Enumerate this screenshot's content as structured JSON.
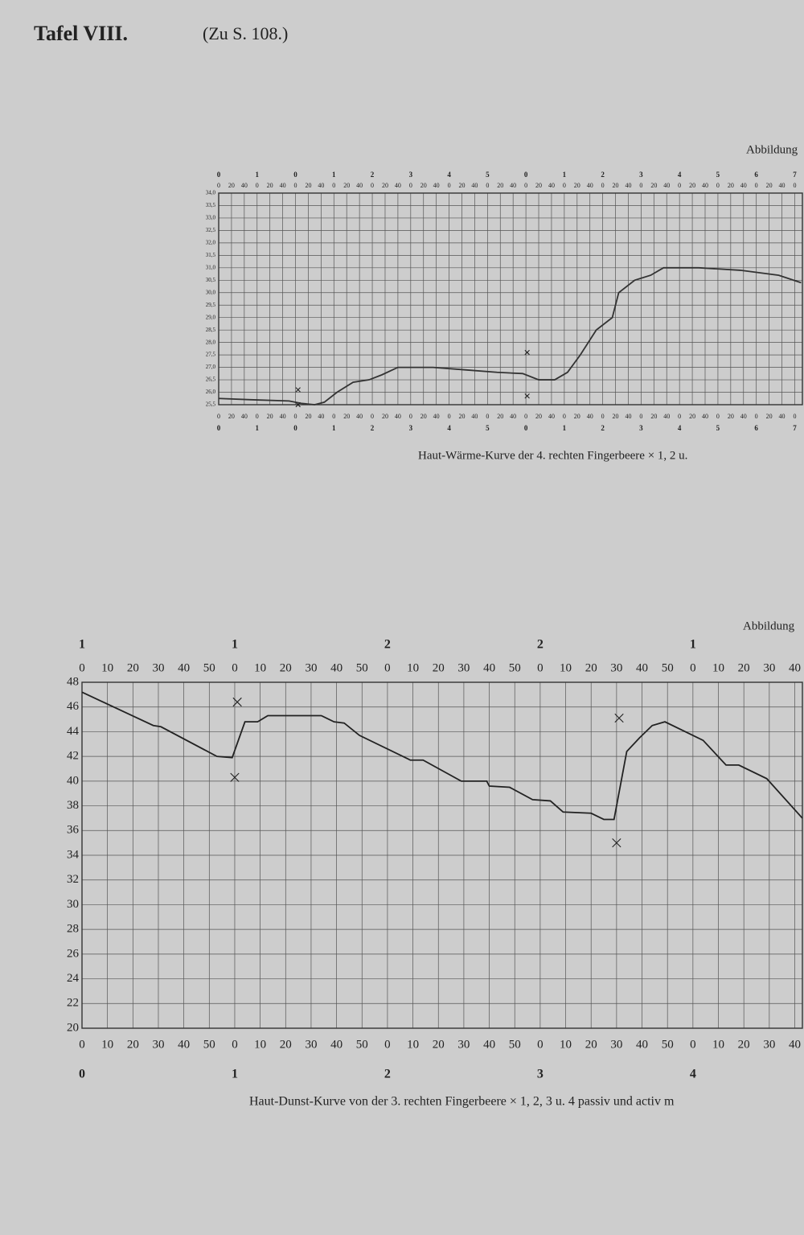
{
  "header": {
    "title": "Tafel VIII.",
    "ref": "(Zu S. 108.)"
  },
  "chart_data": [
    {
      "type": "line",
      "title": "Abbildung",
      "caption": "Haut-Wärme-Kurve der 4. rechten Fingerbeere × 1, 2 u.",
      "color": "#333333",
      "grid": true,
      "x": [
        0,
        50,
        110,
        130,
        150,
        165,
        185,
        210,
        235,
        255,
        280,
        335,
        385,
        435,
        475,
        500,
        525,
        545,
        565,
        590,
        615,
        625,
        650,
        675,
        695,
        750,
        815,
        875,
        910
      ],
      "values": [
        25.75,
        25.7,
        25.65,
        25.55,
        25.5,
        25.6,
        26.0,
        26.4,
        26.5,
        26.7,
        27.0,
        27.0,
        26.9,
        26.8,
        26.75,
        26.5,
        26.5,
        26.8,
        27.5,
        28.5,
        29.0,
        30.0,
        30.5,
        30.7,
        31.0,
        31.0,
        30.9,
        30.7,
        30.4
      ],
      "markers": {
        "x": [
          124,
          124,
          482,
          482
        ],
        "values": [
          26.1,
          25.5,
          27.6,
          25.85
        ]
      },
      "xlim": [
        0,
        912
      ],
      "ylim": [
        25.5,
        34
      ],
      "yticks": [
        {
          "value": 34,
          "label": "34,0"
        },
        {
          "value": 33.5,
          "label": "33,5"
        },
        {
          "value": 33,
          "label": "33,0"
        },
        {
          "value": 32.5,
          "label": "32,5"
        },
        {
          "value": 32,
          "label": "32,0"
        },
        {
          "value": 31.5,
          "label": "31,5"
        },
        {
          "value": 31,
          "label": "31,0"
        },
        {
          "value": 30.5,
          "label": "30,5"
        },
        {
          "value": 30,
          "label": "30,0"
        },
        {
          "value": 29.5,
          "label": "29,5"
        },
        {
          "value": 29,
          "label": "29,0"
        },
        {
          "value": 28.5,
          "label": "28,5"
        },
        {
          "value": 28,
          "label": "28,0"
        },
        {
          "value": 27.5,
          "label": "27,5"
        },
        {
          "value": 27,
          "label": "27,0"
        },
        {
          "value": 26.5,
          "label": "26,5"
        },
        {
          "value": 26,
          "label": "26,0"
        },
        {
          "value": 25.5,
          "label": "25,5"
        }
      ],
      "xticks": [
        0,
        20,
        40,
        {
          "value": 60,
          "label": "0"
        },
        {
          "value": 80,
          "label": "20"
        },
        {
          "value": 100,
          "label": "40"
        },
        {
          "value": 120,
          "label": "0"
        },
        {
          "value": 140,
          "label": "20"
        },
        {
          "value": 160,
          "label": "40"
        },
        {
          "value": 180,
          "label": "0"
        },
        {
          "value": 200,
          "label": "20"
        },
        {
          "value": 220,
          "label": "40"
        },
        {
          "value": 240,
          "label": "0"
        },
        {
          "value": 260,
          "label": "20"
        },
        {
          "value": 280,
          "label": "40"
        },
        {
          "value": 300,
          "label": "0"
        },
        {
          "value": 320,
          "label": "20"
        },
        {
          "value": 340,
          "label": "40"
        },
        {
          "value": 360,
          "label": "0"
        },
        {
          "value": 380,
          "label": "20"
        },
        {
          "value": 400,
          "label": "40"
        },
        {
          "value": 420,
          "label": "0"
        },
        {
          "value": 440,
          "label": "20"
        },
        {
          "value": 460,
          "label": "40"
        },
        {
          "value": 480,
          "label": "0"
        },
        {
          "value": 500,
          "label": "20"
        },
        {
          "value": 520,
          "label": "40"
        },
        {
          "value": 540,
          "label": "0"
        },
        {
          "value": 560,
          "label": "20"
        },
        {
          "value": 580,
          "label": "40"
        },
        {
          "value": 600,
          "label": "0"
        },
        {
          "value": 620,
          "label": "20"
        },
        {
          "value": 640,
          "label": "40"
        },
        {
          "value": 660,
          "label": "0"
        },
        {
          "value": 680,
          "label": "20"
        },
        {
          "value": 700,
          "label": "40"
        },
        {
          "value": 720,
          "label": "0"
        },
        {
          "value": 740,
          "label": "20"
        },
        {
          "value": 760,
          "label": "40"
        },
        {
          "value": 780,
          "label": "0"
        },
        {
          "value": 800,
          "label": "20"
        },
        {
          "value": 820,
          "label": "40"
        },
        {
          "value": 840,
          "label": "0"
        },
        {
          "value": 860,
          "label": "20"
        },
        {
          "value": 880,
          "label": "40"
        },
        {
          "value": 900,
          "label": "0"
        }
      ],
      "group_ticks_top": [
        0,
        {
          "value": 60,
          "label": "1"
        },
        {
          "value": 120,
          "label": "0"
        },
        {
          "value": 180,
          "label": "1"
        },
        {
          "value": 240,
          "label": "2"
        },
        {
          "value": 300,
          "label": "3"
        },
        {
          "value": 360,
          "label": "4"
        },
        {
          "value": 420,
          "label": "5"
        },
        {
          "value": 480,
          "label": "0"
        },
        {
          "value": 540,
          "label": "1"
        },
        {
          "value": 600,
          "label": "2"
        },
        {
          "value": 660,
          "label": "3"
        },
        {
          "value": 720,
          "label": "4"
        },
        {
          "value": 780,
          "label": "5"
        },
        {
          "value": 840,
          "label": "6"
        },
        {
          "value": 900,
          "label": "7"
        }
      ],
      "group_ticks_bottom": [
        0,
        {
          "value": 60,
          "label": "1"
        },
        {
          "value": 120,
          "label": "0"
        },
        {
          "value": 180,
          "label": "1"
        },
        {
          "value": 240,
          "label": "2"
        },
        {
          "value": 300,
          "label": "3"
        },
        {
          "value": 360,
          "label": "4"
        },
        {
          "value": 420,
          "label": "5"
        },
        {
          "value": 480,
          "label": "0"
        },
        {
          "value": 540,
          "label": "1"
        },
        {
          "value": 600,
          "label": "2"
        },
        {
          "value": 660,
          "label": "3"
        },
        {
          "value": 720,
          "label": "4"
        },
        {
          "value": 780,
          "label": "5"
        },
        {
          "value": 840,
          "label": "6"
        },
        {
          "value": 900,
          "label": "7"
        }
      ]
    },
    {
      "type": "line",
      "title": "Abbildung",
      "caption": "Haut-Dunst-Kurve von der 3. rechten Fingerbeere × 1, 2, 3 u. 4 passiv und activ m",
      "color": "#222222",
      "grid": true,
      "x": [
        0,
        28,
        31,
        53,
        59,
        64,
        69,
        73,
        94,
        99,
        103,
        109,
        129,
        134,
        149,
        159,
        160,
        168,
        177,
        184,
        189,
        200,
        205,
        209,
        214,
        219,
        224,
        229,
        244,
        253,
        258,
        269,
        283
      ],
      "values": [
        47.2,
        44.5,
        44.4,
        42,
        41.9,
        44.8,
        44.8,
        45.3,
        45.3,
        44.8,
        44.7,
        43.7,
        41.7,
        41.7,
        40,
        40,
        39.6,
        39.5,
        38.5,
        38.4,
        37.5,
        37.4,
        36.9,
        36.9,
        42.4,
        43.5,
        44.5,
        44.8,
        43.3,
        41.3,
        41.3,
        40.2,
        37
      ],
      "markers": {
        "x": [
          61,
          60,
          211,
          210
        ],
        "values": [
          46.4,
          40.3,
          45.1,
          35.0
        ]
      },
      "xlim": [
        0,
        283
      ],
      "ylim": [
        20,
        48
      ],
      "yticks": [
        48,
        46,
        44,
        42,
        40,
        38,
        36,
        34,
        32,
        30,
        28,
        26,
        24,
        22,
        20
      ],
      "xticks": [
        0,
        10,
        20,
        30,
        40,
        50,
        {
          "value": 60,
          "label": "0"
        },
        {
          "value": 70,
          "label": "10"
        },
        {
          "value": 80,
          "label": "20"
        },
        {
          "value": 90,
          "label": "30"
        },
        {
          "value": 100,
          "label": "40"
        },
        {
          "value": 110,
          "label": "50"
        },
        {
          "value": 120,
          "label": "0"
        },
        {
          "value": 130,
          "label": "10"
        },
        {
          "value": 140,
          "label": "20"
        },
        {
          "value": 150,
          "label": "30"
        },
        {
          "value": 160,
          "label": "40"
        },
        {
          "value": 170,
          "label": "50"
        },
        {
          "value": 180,
          "label": "0"
        },
        {
          "value": 190,
          "label": "10"
        },
        {
          "value": 200,
          "label": "20"
        },
        {
          "value": 210,
          "label": "30"
        },
        {
          "value": 220,
          "label": "40"
        },
        {
          "value": 230,
          "label": "50"
        },
        {
          "value": 240,
          "label": "0"
        },
        {
          "value": 250,
          "label": "10"
        },
        {
          "value": 260,
          "label": "20"
        },
        {
          "value": 270,
          "label": "30"
        },
        {
          "value": 280,
          "label": "40"
        }
      ],
      "group_ticks_top": [
        {
          "value": 0,
          "label": "1"
        },
        {
          "value": 60,
          "label": "1"
        },
        {
          "value": 120,
          "label": "2"
        },
        {
          "value": 180,
          "label": "2"
        },
        {
          "value": 240,
          "label": "1"
        }
      ],
      "group_ticks_bottom": [
        0,
        {
          "value": 60,
          "label": "1"
        },
        {
          "value": 120,
          "label": "2"
        },
        {
          "value": 180,
          "label": "3"
        },
        {
          "value": 240,
          "label": "4"
        }
      ]
    }
  ]
}
